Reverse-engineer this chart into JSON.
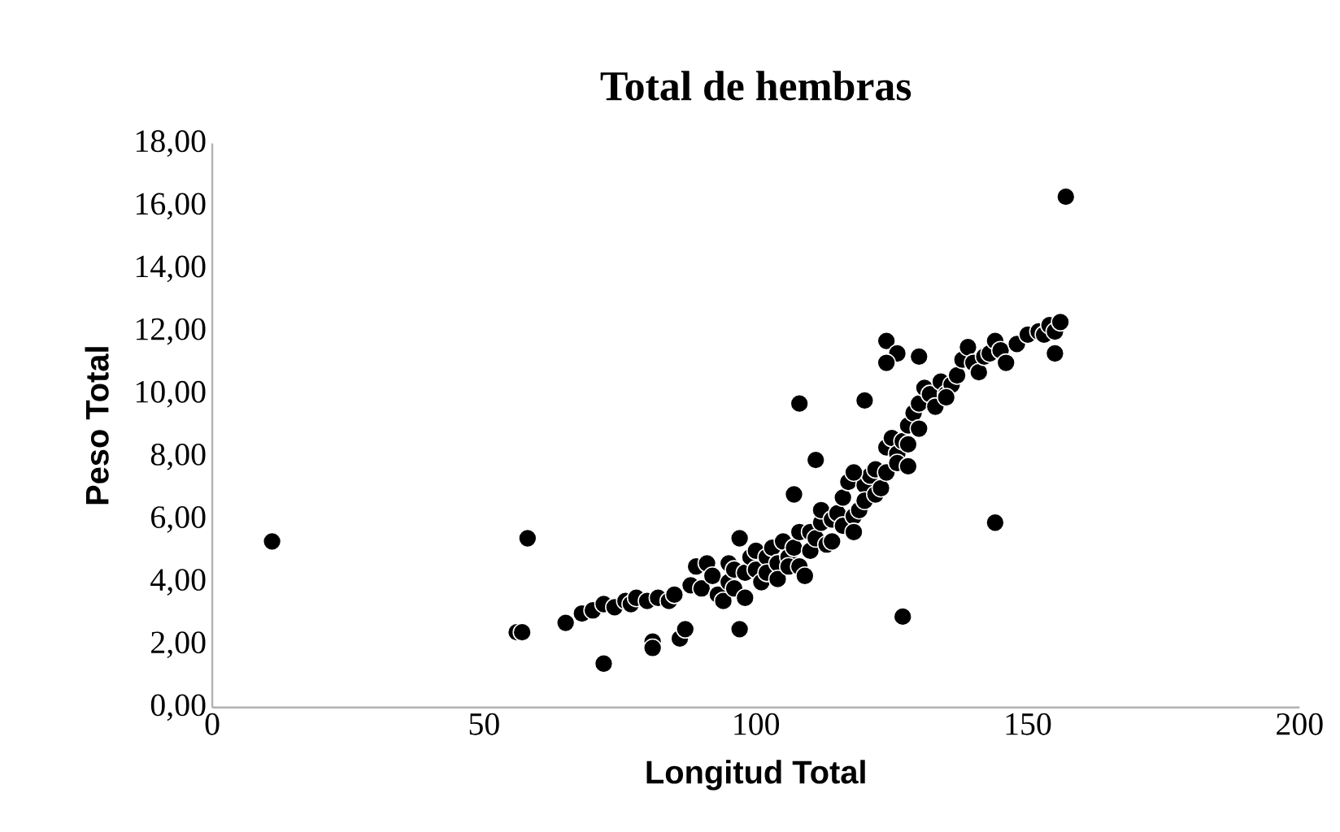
{
  "chart_data": {
    "type": "scatter",
    "title": "Total de hembras",
    "xlabel": "Longitud Total",
    "ylabel": "Peso Total",
    "xlim": [
      0,
      200
    ],
    "xticks": [
      0,
      50,
      100,
      150,
      200
    ],
    "ylim": [
      0,
      18
    ],
    "yticks": [
      {
        "value": 0,
        "label": "0,00"
      },
      {
        "value": 2,
        "label": "2,00"
      },
      {
        "value": 4,
        "label": "4,00"
      },
      {
        "value": 6,
        "label": "6,00"
      },
      {
        "value": 8,
        "label": "8,00"
      },
      {
        "value": 10,
        "label": "10,00"
      },
      {
        "value": 12,
        "label": "12,00"
      },
      {
        "value": 14,
        "label": "14,00"
      },
      {
        "value": 16,
        "label": "16,00"
      },
      {
        "value": 18,
        "label": "18,00"
      }
    ],
    "grid": false,
    "marker": "circle",
    "series": [
      {
        "color": "#000000",
        "x": [
          11,
          58,
          157,
          108,
          120,
          144,
          127,
          72,
          56,
          57,
          97,
          81,
          81,
          86,
          87,
          65,
          68,
          70,
          72,
          74,
          76,
          77,
          78,
          80,
          82,
          84,
          85,
          88,
          89,
          90,
          91,
          92,
          93,
          94,
          95,
          95,
          96,
          96,
          97,
          98,
          98,
          99,
          100,
          100,
          101,
          102,
          102,
          103,
          104,
          104,
          105,
          106,
          106,
          107,
          108,
          108,
          109,
          110,
          110,
          111,
          112,
          112,
          113,
          114,
          114,
          115,
          116,
          116,
          117,
          118,
          118,
          119,
          120,
          120,
          121,
          122,
          122,
          123,
          124,
          124,
          125,
          126,
          126,
          127,
          128,
          128,
          129,
          130,
          130,
          131,
          132,
          133,
          134,
          135,
          136,
          137,
          138,
          139,
          140,
          141,
          142,
          143,
          144,
          145,
          146,
          148,
          150,
          152,
          153,
          154,
          155,
          156,
          124,
          126,
          130,
          124,
          111,
          107,
          155,
          135,
          128,
          118
        ],
        "values": [
          5.3,
          5.4,
          16.3,
          9.7,
          9.8,
          5.9,
          2.9,
          1.4,
          2.4,
          2.4,
          2.5,
          2.1,
          1.9,
          2.2,
          2.5,
          2.7,
          3.0,
          3.1,
          3.3,
          3.2,
          3.4,
          3.3,
          3.5,
          3.4,
          3.5,
          3.4,
          3.6,
          3.9,
          4.5,
          3.8,
          4.6,
          4.2,
          3.6,
          3.4,
          4.0,
          4.6,
          3.8,
          4.4,
          5.4,
          4.3,
          3.5,
          4.8,
          4.4,
          5.0,
          4.0,
          4.8,
          4.3,
          5.1,
          4.6,
          4.1,
          5.3,
          4.8,
          4.5,
          5.1,
          5.6,
          4.5,
          4.2,
          5.0,
          5.6,
          5.4,
          5.9,
          6.3,
          5.2,
          6.0,
          5.3,
          6.2,
          5.8,
          6.7,
          7.2,
          6.1,
          5.6,
          6.3,
          7.1,
          6.6,
          7.4,
          7.6,
          6.8,
          7.0,
          8.3,
          7.5,
          8.6,
          8.1,
          7.8,
          8.5,
          9.0,
          8.4,
          9.4,
          9.7,
          8.9,
          10.2,
          10.0,
          9.6,
          10.4,
          10.0,
          10.3,
          10.6,
          11.1,
          11.5,
          11.0,
          10.7,
          11.2,
          11.3,
          11.7,
          11.4,
          11.0,
          11.6,
          11.9,
          12.0,
          11.9,
          12.2,
          12.0,
          12.3,
          11.7,
          11.3,
          11.2,
          11.0,
          7.9,
          6.8,
          11.3,
          9.9,
          7.7,
          7.5
        ]
      }
    ]
  }
}
